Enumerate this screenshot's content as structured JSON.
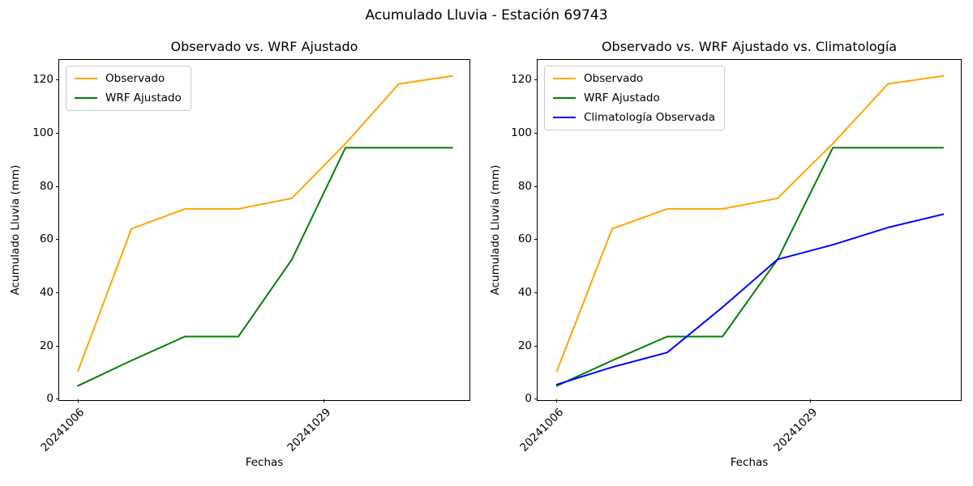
{
  "figure": {
    "suptitle": "Acumulado Lluvia - Estación 69743"
  },
  "chart_data": [
    {
      "type": "line",
      "title": "Observado vs. WRF Ajustado",
      "xlabel": "Fechas",
      "ylabel": "Acumulado Lluvia (mm)",
      "x_days_from_first_tick": [
        0,
        5,
        10,
        15,
        20,
        25,
        30,
        35
      ],
      "xticks": [
        {
          "day": 0,
          "label": "20241006"
        },
        {
          "day": 23,
          "label": "20241029"
        }
      ],
      "yticks": [
        0,
        20,
        40,
        60,
        80,
        100,
        120
      ],
      "xlim_days": [
        -1.75,
        36.75
      ],
      "ylim": [
        -1,
        127.5
      ],
      "grid": false,
      "legend_position": "upper left",
      "series": [
        {
          "name": "Observado",
          "color": "#FFA500",
          "values": [
            10.5,
            64,
            71.5,
            71.5,
            75.5,
            96,
            118.5,
            121.5
          ]
        },
        {
          "name": "WRF Ajustado",
          "color": "#008000",
          "values": [
            5,
            14.5,
            23.5,
            23.5,
            52.5,
            94.5,
            94.5,
            94.5
          ]
        }
      ]
    },
    {
      "type": "line",
      "title": "Observado vs. WRF Ajustado vs. Climatología",
      "xlabel": "Fechas",
      "ylabel": "Acumulado Lluvia (mm)",
      "x_days_from_first_tick": [
        0,
        5,
        10,
        15,
        20,
        25,
        30,
        35
      ],
      "xticks": [
        {
          "day": 0,
          "label": "20241006"
        },
        {
          "day": 23,
          "label": "20241029"
        }
      ],
      "yticks": [
        0,
        20,
        40,
        60,
        80,
        100,
        120
      ],
      "xlim_days": [
        -1.75,
        36.75
      ],
      "ylim": [
        -1,
        127.5
      ],
      "grid": false,
      "legend_position": "upper left",
      "series": [
        {
          "name": "Observado",
          "color": "#FFA500",
          "values": [
            10.5,
            64,
            71.5,
            71.5,
            75.5,
            96,
            118.5,
            121.5
          ]
        },
        {
          "name": "WRF Ajustado",
          "color": "#008000",
          "values": [
            5,
            14.5,
            23.5,
            23.5,
            52.5,
            94.5,
            94.5,
            94.5
          ]
        },
        {
          "name": "Climatología Observada",
          "color": "#0000FF",
          "values": [
            5.5,
            12,
            17.5,
            34.5,
            52.5,
            58,
            64.5,
            69.5
          ]
        }
      ]
    }
  ]
}
